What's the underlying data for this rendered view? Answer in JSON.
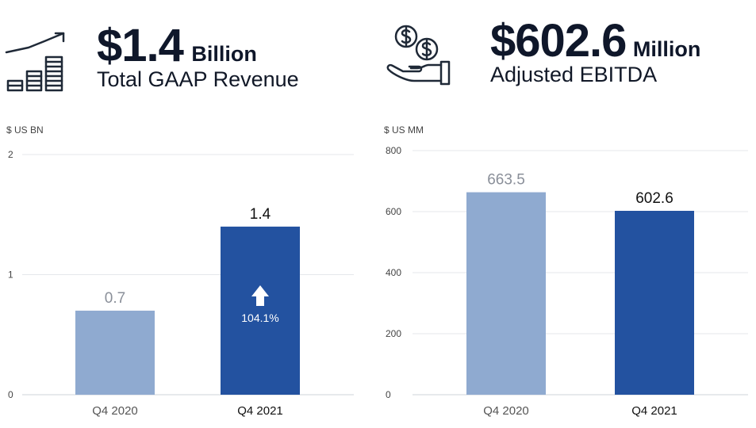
{
  "revenue": {
    "amount": "$1.4",
    "unit": "Billion",
    "label": "Total GAAP Revenue",
    "icon": "growth-chart-icon"
  },
  "ebitda": {
    "amount": "$602.6",
    "unit": "Million",
    "label": "Adjusted EBITDA",
    "icon": "money-hand-icon"
  },
  "colors": {
    "light_bar": "#8faad0",
    "dark_bar": "#2352a0",
    "grid": "#e5e7eb",
    "axis": "#cfd3d8"
  },
  "chart_data": [
    {
      "type": "bar",
      "title": "",
      "ylabel": "$ US BN",
      "xlabel": "",
      "categories": [
        "Q4 2020",
        "Q4 2021"
      ],
      "values": [
        0.7,
        1.4
      ],
      "value_labels": [
        "0.7",
        "1.4"
      ],
      "ylim": [
        0,
        2
      ],
      "yticks": [
        0,
        1,
        2
      ],
      "ytick_labels": [
        "0",
        "1",
        "2"
      ],
      "annotation": {
        "category": "Q4 2021",
        "text": "104.1%",
        "icon": "up-arrow-icon"
      }
    },
    {
      "type": "bar",
      "title": "",
      "ylabel": "$ US MM",
      "xlabel": "",
      "categories": [
        "Q4 2020",
        "Q4 2021"
      ],
      "values": [
        663.5,
        602.6
      ],
      "value_labels": [
        "663.5",
        "602.6"
      ],
      "ylim": [
        0,
        800
      ],
      "yticks": [
        0,
        200,
        400,
        600,
        800
      ],
      "ytick_labels": [
        "0",
        "200",
        "400",
        "600",
        "800"
      ]
    }
  ]
}
